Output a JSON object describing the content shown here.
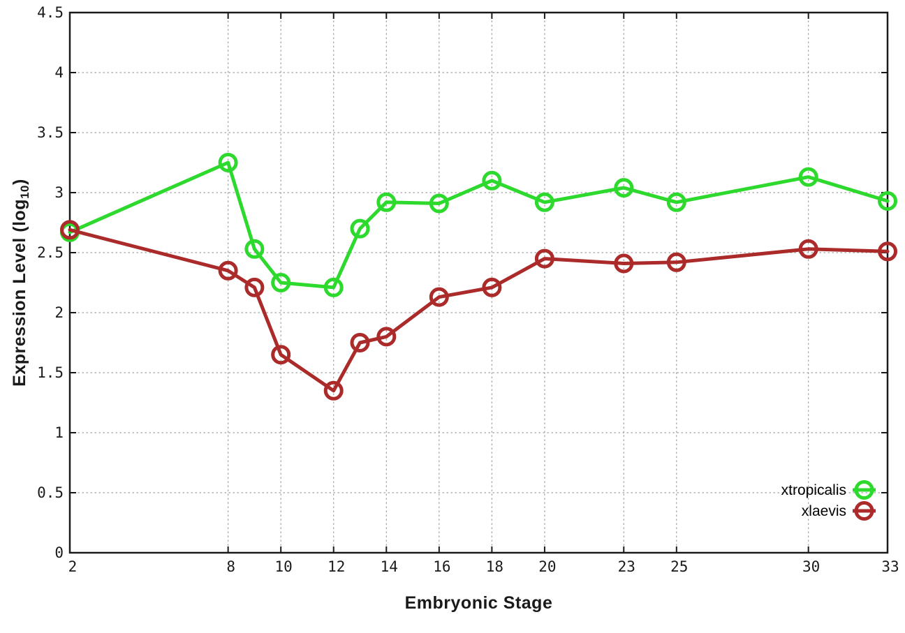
{
  "chart_data": {
    "type": "line",
    "title": "",
    "xlabel": "Embryonic Stage",
    "ylabel": "Expression Level (log10)",
    "ylabel_parts": {
      "main": "Expression Level (log",
      "sub": "10",
      "suffix": ")"
    },
    "x": [
      2,
      8,
      9,
      10,
      12,
      13,
      14,
      16,
      18,
      20,
      23,
      25,
      30,
      33
    ],
    "series": [
      {
        "name": "xtropicalis",
        "color": "#2dd92d",
        "values": [
          2.67,
          3.25,
          2.53,
          2.25,
          2.21,
          2.7,
          2.92,
          2.91,
          3.1,
          2.92,
          3.04,
          2.92,
          3.13,
          2.93
        ]
      },
      {
        "name": "xlaevis",
        "color": "#ab2a2a",
        "values": [
          2.69,
          2.35,
          2.21,
          1.65,
          1.35,
          1.75,
          1.8,
          2.13,
          2.21,
          2.45,
          2.41,
          2.42,
          2.53,
          2.51
        ]
      }
    ],
    "xlim": [
      2,
      33
    ],
    "ylim": [
      0,
      4.5
    ],
    "xticks": [
      2,
      8,
      10,
      12,
      14,
      16,
      18,
      20,
      23,
      25,
      30,
      33
    ],
    "xtick_labels": [
      "2",
      "8",
      "10",
      "12",
      "14",
      "16",
      "18",
      "20",
      "23",
      "25",
      "30",
      "33"
    ],
    "yticks": [
      0,
      0.5,
      1,
      1.5,
      2,
      2.5,
      3,
      3.5,
      4,
      4.5
    ],
    "ytick_labels": [
      "0",
      "0.5",
      "1",
      "1.5",
      "2",
      "2.5",
      "3",
      "3.5",
      "4",
      "4.5"
    ],
    "grid": true,
    "legend_position": "bottom-right",
    "marker": "open-circle",
    "styles": {
      "background": "#ffffff",
      "border_color": "#1a1a1a",
      "grid_color": "#9e9e9e",
      "tick_label_color": "#1a1a1a",
      "legend_text_color": "#000000"
    }
  }
}
